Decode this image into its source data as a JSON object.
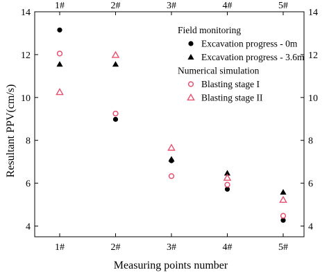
{
  "chart_data": {
    "type": "scatter",
    "categories": [
      "1#",
      "2#",
      "3#",
      "4#",
      "5#"
    ],
    "xlabel": "Measuring points number",
    "ylabel": "Resultant PPV(cm/s)",
    "ylim": [
      3.5,
      14
    ],
    "yticks": [
      4,
      6,
      8,
      10,
      12,
      14
    ],
    "grid": false,
    "legend_position": "top-right",
    "legend_groups": [
      {
        "title": "Field monitoring",
        "series": [
          {
            "name": "Excavation progress - 0m",
            "marker": "filled-circle",
            "color": "#000000",
            "values": [
              13.15,
              8.98,
              7.05,
              5.72,
              4.27
            ]
          },
          {
            "name": "Excavation progress - 3.6m",
            "marker": "filled-triangle",
            "color": "#000000",
            "values": [
              11.55,
              11.55,
              7.12,
              6.47,
              5.58
            ]
          }
        ]
      },
      {
        "title": "Numerical simulation",
        "series": [
          {
            "name": "Blasting stage I",
            "marker": "open-circle",
            "color": "#e8506e",
            "values": [
              12.05,
              9.25,
              6.33,
              5.93,
              4.48
            ]
          },
          {
            "name": "Blasting stage II",
            "marker": "open-triangle",
            "color": "#e8506e",
            "values": [
              10.25,
              11.98,
              7.65,
              6.25,
              5.22
            ]
          }
        ]
      }
    ]
  }
}
